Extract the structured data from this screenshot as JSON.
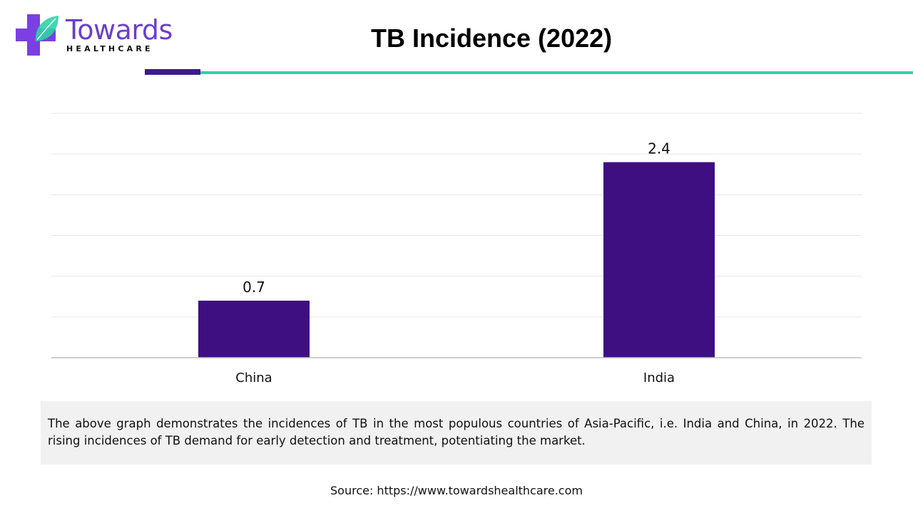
{
  "brand": {
    "name": "Towards",
    "subtitle": "HEALTHCARE",
    "colors": {
      "purple": "#6b3fc9",
      "dark_purple": "#3d1a8e",
      "teal": "#2ed3a6"
    },
    "icon": "medical-cross-leaf-icon"
  },
  "header": {
    "title": "TB Incidence (2022)"
  },
  "chart_data": {
    "type": "bar",
    "categories": [
      "China",
      "India"
    ],
    "values": [
      0.7,
      2.4
    ],
    "data_labels": [
      "0.7",
      "2.4"
    ],
    "title": "TB Incidence (2022)",
    "xlabel": "",
    "ylabel": "",
    "ylim": [
      0,
      3
    ],
    "grid": true,
    "bar_color": "#3d0f80"
  },
  "description": "The above graph demonstrates the incidences of TB in the most populous countries of Asia-Pacific, i.e. India and China, in 2022. The rising incidences of TB demand for early detection and treatment, potentiating the market.",
  "source": "Source: https://www.towardshealthcare.com"
}
